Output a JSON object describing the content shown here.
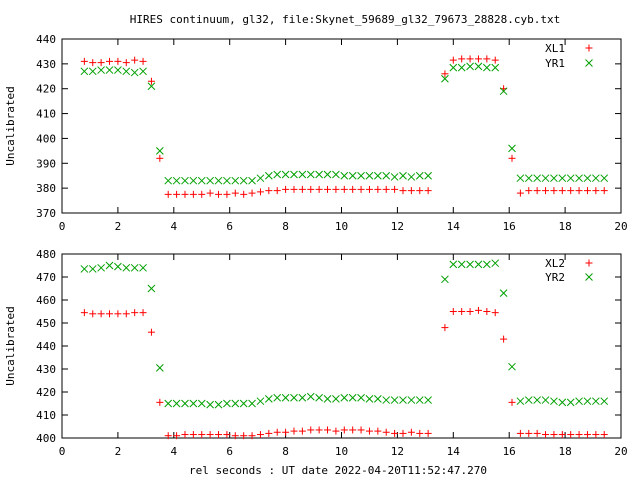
{
  "chart_data": {
    "title": "HIRES continuum, gl32, file:Skynet_59689_gl32_79673_28828.cyb.txt",
    "xlabel": "rel seconds : UT date 2022-04-20T11:52:47.270",
    "colors": {
      "red": "#ff0000",
      "green": "#00a000"
    },
    "x": [
      0.8,
      1.1,
      1.4,
      1.7,
      2.0,
      2.3,
      2.6,
      2.9,
      3.2,
      3.5,
      3.8,
      4.1,
      4.4,
      4.7,
      5.0,
      5.3,
      5.6,
      5.9,
      6.2,
      6.5,
      6.8,
      7.1,
      7.4,
      7.7,
      8.0,
      8.3,
      8.6,
      8.9,
      9.2,
      9.5,
      9.8,
      10.1,
      10.4,
      10.7,
      11.0,
      11.3,
      11.6,
      11.9,
      12.2,
      12.5,
      12.8,
      13.1,
      13.7,
      14.0,
      14.3,
      14.6,
      14.9,
      15.2,
      15.5,
      15.8,
      16.1,
      16.4,
      16.7,
      17.0,
      17.3,
      17.6,
      17.9,
      18.2,
      18.5,
      18.8,
      19.1,
      19.4
    ],
    "panels": [
      {
        "ylabel": "Uncalibrated",
        "ylim": [
          370,
          440
        ],
        "yticks": [
          370,
          380,
          390,
          400,
          410,
          420,
          430,
          440
        ],
        "xlim": [
          0,
          20
        ],
        "xticks": [
          0,
          2,
          4,
          6,
          8,
          10,
          12,
          14,
          16,
          18,
          20
        ],
        "series": [
          {
            "name": "XL1",
            "marker": "plus",
            "color": "#ff0000",
            "values": [
              431,
              430.5,
              430.5,
              431,
              431,
              430.5,
              431.5,
              431,
              423,
              392,
              377.5,
              377.5,
              377.5,
              377.5,
              377.5,
              378,
              377.5,
              377.5,
              378,
              377.5,
              378,
              378.5,
              379,
              379,
              379.5,
              379.5,
              379.5,
              379.5,
              379.5,
              379.5,
              379.5,
              379.5,
              379.5,
              379.5,
              379.5,
              379.5,
              379.5,
              379.5,
              379,
              379,
              379,
              379,
              426,
              431.5,
              432,
              432,
              432,
              432,
              431.5,
              420,
              392,
              378,
              379,
              379,
              379,
              379,
              379,
              379,
              379,
              379,
              379,
              379
            ]
          },
          {
            "name": "YR1",
            "marker": "cross",
            "color": "#00a000",
            "values": [
              427,
              427,
              427.5,
              427.5,
              427.5,
              427,
              426.5,
              427,
              421,
              395,
              383,
              383,
              383,
              383,
              383,
              383,
              383,
              383,
              383,
              383,
              383,
              384,
              385,
              385.5,
              385.5,
              385.5,
              385.5,
              385.5,
              385.5,
              385.5,
              385.5,
              385,
              385,
              385,
              385,
              385,
              385,
              384.5,
              385,
              384.5,
              385,
              385,
              424,
              428.5,
              428.5,
              429,
              429,
              428.5,
              428.5,
              419,
              396,
              384,
              384,
              384,
              384,
              384,
              384,
              384,
              384,
              384,
              384,
              384
            ]
          }
        ]
      },
      {
        "ylabel": "Uncalibrated",
        "ylim": [
          400,
          480
        ],
        "yticks": [
          400,
          410,
          420,
          430,
          440,
          450,
          460,
          470,
          480
        ],
        "xlim": [
          0,
          20
        ],
        "xticks": [
          0,
          2,
          4,
          6,
          8,
          10,
          12,
          14,
          16,
          18,
          20
        ],
        "series": [
          {
            "name": "XL2",
            "marker": "plus",
            "color": "#ff0000",
            "values": [
              454.5,
              454,
              454,
              454,
              454,
              454,
              454.5,
              454.5,
              446,
              415.5,
              401,
              401,
              401.5,
              401.5,
              401.5,
              401.5,
              401.5,
              401.5,
              401,
              401,
              401,
              401.5,
              402,
              402.5,
              402.5,
              403,
              403,
              403.5,
              403.5,
              403.5,
              403,
              403.5,
              403.5,
              403.5,
              403,
              403,
              402.5,
              402,
              402,
              402.5,
              402,
              402,
              448,
              455,
              455,
              455,
              455.5,
              455,
              454.5,
              443,
              415.5,
              402,
              402,
              402,
              401.5,
              401.5,
              401.5,
              401.5,
              401.5,
              401.5,
              401.5,
              401.5
            ]
          },
          {
            "name": "YR2",
            "marker": "cross",
            "color": "#00a000",
            "values": [
              473.5,
              473.5,
              474,
              475,
              474.5,
              474,
              474,
              474,
              465,
              430.5,
              415,
              415,
              415,
              415,
              415,
              414.5,
              414.5,
              415,
              415,
              415,
              415,
              416,
              417,
              417.5,
              417.5,
              417.5,
              417.5,
              418,
              417.5,
              417,
              417,
              417.5,
              417.5,
              417.5,
              417,
              417,
              416.5,
              416.5,
              416.5,
              416.5,
              416.5,
              416.5,
              469,
              475.5,
              475.5,
              475.5,
              475.5,
              475.5,
              476,
              463,
              431,
              416,
              416.5,
              416.5,
              416.5,
              416,
              415.5,
              415.5,
              416,
              416,
              416,
              416
            ]
          }
        ]
      }
    ]
  }
}
